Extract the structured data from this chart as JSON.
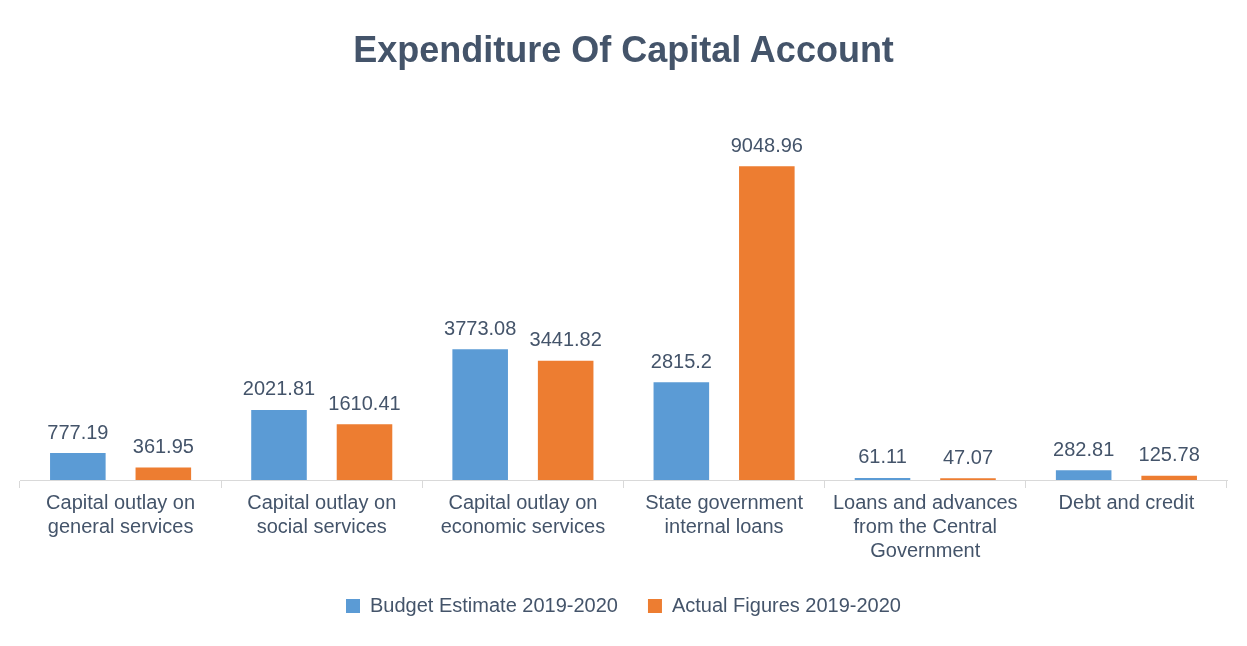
{
  "chart_data": {
    "type": "bar",
    "title": "Expenditure Of Capital Account",
    "categories": [
      "Capital outlay on general services",
      "Capital outlay on social services",
      "Capital outlay on economic services",
      "State government internal loans",
      "Loans and advances from the Central Government",
      "Debt and credit"
    ],
    "series": [
      {
        "name": "Budget Estimate 2019-2020",
        "color": "#5b9bd5",
        "values": [
          777.19,
          2021.81,
          3773.08,
          2815.2,
          61.11,
          282.81
        ]
      },
      {
        "name": "Actual Figures 2019-2020",
        "color": "#ed7d31",
        "values": [
          361.95,
          1610.41,
          3441.82,
          9048.96,
          47.07,
          125.78
        ]
      }
    ],
    "data_labels": true,
    "legend": "bottom",
    "grid": false
  }
}
